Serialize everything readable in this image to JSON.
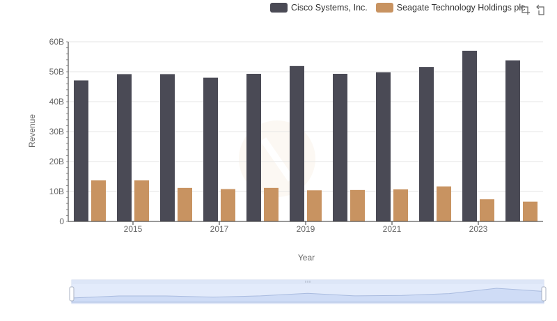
{
  "chart_data": {
    "type": "bar",
    "title": "",
    "xlabel": "Year",
    "ylabel": "Revenue",
    "categories": [
      "2014",
      "2015",
      "2016",
      "2017",
      "2018",
      "2019",
      "2020",
      "2021",
      "2022",
      "2023",
      "2024"
    ],
    "x_tick_labels": [
      "2015",
      "2017",
      "2019",
      "2021",
      "2023"
    ],
    "y_tick_labels": [
      "0",
      "10B",
      "20B",
      "30B",
      "40B",
      "50B",
      "60B"
    ],
    "ylim": [
      0,
      60000000000
    ],
    "grid": true,
    "legend_position": "top-right",
    "series": [
      {
        "name": "Cisco Systems, Inc.",
        "color": "#4a4a55",
        "values": [
          47100000000,
          49200000000,
          49200000000,
          48000000000,
          49300000000,
          51900000000,
          49300000000,
          49800000000,
          51600000000,
          57000000000,
          53800000000
        ]
      },
      {
        "name": "Seagate Technology Holdings plc",
        "color": "#c89361",
        "values": [
          13700000000,
          13700000000,
          11200000000,
          10800000000,
          11200000000,
          10400000000,
          10500000000,
          10700000000,
          11700000000,
          7400000000,
          6600000000
        ]
      }
    ]
  },
  "toolbox": {
    "zoom_icon": "zoom-icon",
    "reset_icon": "reset-zoom-icon"
  }
}
